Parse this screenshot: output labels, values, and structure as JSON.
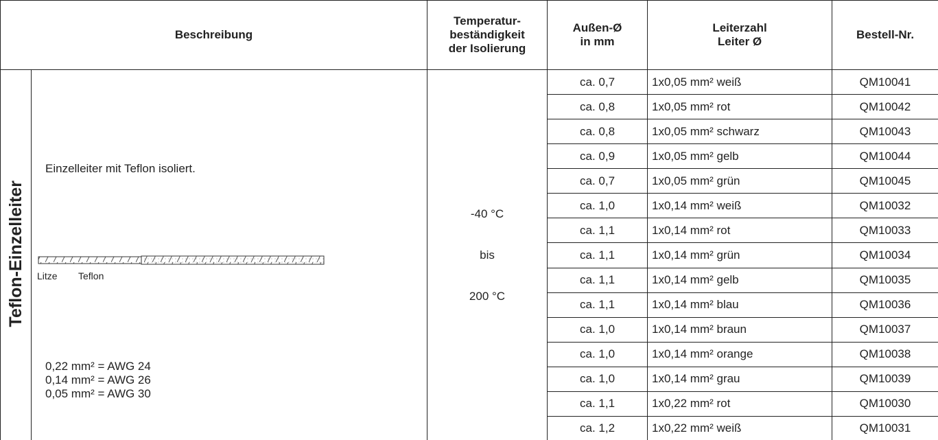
{
  "header": {
    "description": "Beschreibung",
    "temperature": [
      "Temperatur-",
      "beständigkeit",
      "der Isolierung"
    ],
    "diameter": [
      "Außen-Ø",
      "in mm"
    ],
    "conductors": [
      "Leiterzahl",
      "Leiter Ø"
    ],
    "order_number": "Bestell-Nr."
  },
  "side_label": "Teflon-Einzelleiter",
  "description": {
    "text": "Einzelleiter mit Teflon isoliert.",
    "wire_labels": [
      "Litze",
      "Teflon"
    ],
    "awg": [
      "0,22 mm² = AWG 24",
      "0,14 mm² = AWG 26",
      "0,05 mm² = AWG 30"
    ]
  },
  "temperature": [
    "-40 °C",
    "bis",
    "200 °C"
  ],
  "table": {
    "rows": [
      [
        "ca. 0,7",
        "1x0,05 mm² weiß",
        "QM10041"
      ],
      [
        "ca. 0,8",
        "1x0,05 mm² rot",
        "QM10042"
      ],
      [
        "ca. 0,8",
        "1x0,05 mm² schwarz",
        "QM10043"
      ],
      [
        "ca. 0,9",
        "1x0,05 mm² gelb",
        "QM10044"
      ],
      [
        "ca. 0,7",
        "1x0,05 mm² grün",
        "QM10045"
      ],
      [
        "ca. 1,0",
        "1x0,14 mm² weiß",
        "QM10032"
      ],
      [
        "ca. 1,1",
        "1x0,14 mm² rot",
        "QM10033"
      ],
      [
        "ca. 1,1",
        "1x0,14 mm² grün",
        "QM10034"
      ],
      [
        "ca. 1,1",
        "1x0,14 mm² gelb",
        "QM10035"
      ],
      [
        "ca. 1,1",
        "1x0,14 mm² blau",
        "QM10036"
      ],
      [
        "ca. 1,0",
        "1x0,14 mm² braun",
        "QM10037"
      ],
      [
        "ca. 1,0",
        "1x0,14 mm² orange",
        "QM10038"
      ],
      [
        "ca. 1,0",
        "1x0,14 mm² grau",
        "QM10039"
      ],
      [
        "ca. 1,1",
        "1x0,22 mm² rot",
        "QM10030"
      ],
      [
        "ca. 1,2",
        "1x0,22 mm² weiß",
        "QM10031"
      ]
    ]
  }
}
